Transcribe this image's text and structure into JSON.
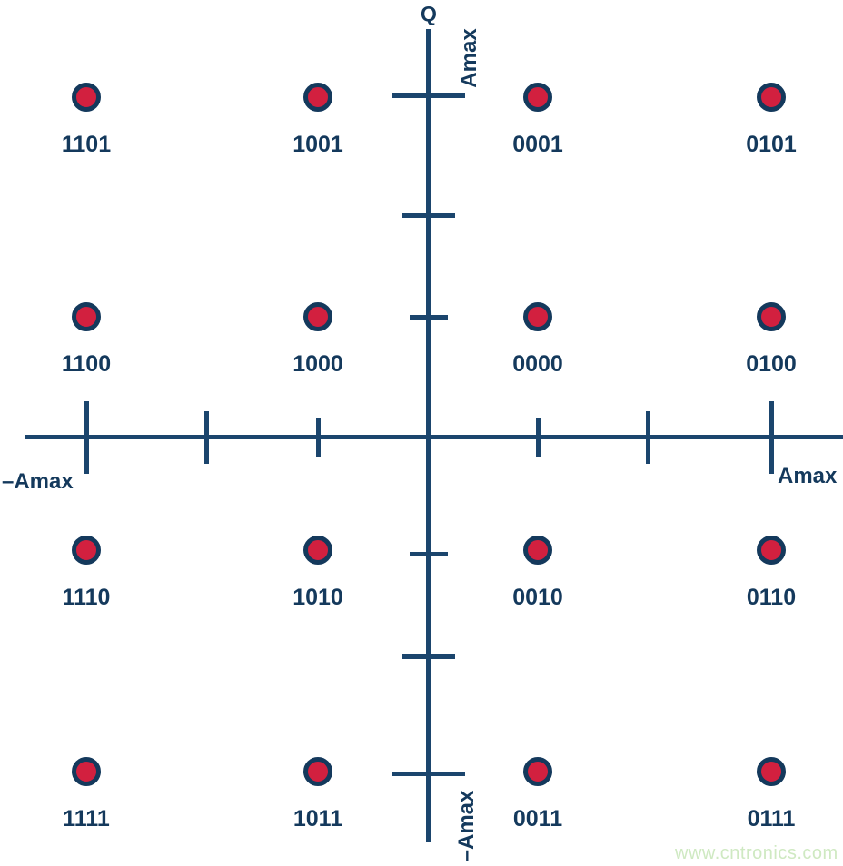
{
  "figure": {
    "q_axis_label": "Q",
    "q_axis_top_label": "Amax",
    "q_axis_bottom_label": "–Amax",
    "i_axis_left_label": "–Amax",
    "i_axis_right_label": "Amax"
  },
  "watermark": "www.cntronics.com",
  "colors": {
    "navy_text": "#14395c",
    "axis_line": "#1b456d",
    "point_red": "#d2203f",
    "watermark_green": "#cfe9c2"
  },
  "chart_data": {
    "type": "scatter",
    "title": "",
    "xlabel": "",
    "ylabel": "Q",
    "x_axis": {
      "label_left": "–Amax",
      "label_right": "Amax",
      "ticks_units": [
        -3,
        -2,
        -1,
        1,
        2,
        3
      ],
      "amax_at_units": 3
    },
    "y_axis": {
      "name": "Q",
      "label_top": "Amax",
      "label_bottom": "–Amax",
      "ticks_units": [
        3,
        2,
        1,
        -1,
        -2,
        -3
      ],
      "amax_at_units": 3
    },
    "grid": false,
    "legend": false,
    "points": [
      {
        "i": -3,
        "q": 3,
        "label": "1101"
      },
      {
        "i": -1,
        "q": 3,
        "label": "1001"
      },
      {
        "i": 1,
        "q": 3,
        "label": "0001"
      },
      {
        "i": 3,
        "q": 3,
        "label": "0101"
      },
      {
        "i": -3,
        "q": 1,
        "label": "1100"
      },
      {
        "i": -1,
        "q": 1,
        "label": "1000"
      },
      {
        "i": 1,
        "q": 1,
        "label": "0000"
      },
      {
        "i": 3,
        "q": 1,
        "label": "0100"
      },
      {
        "i": -3,
        "q": -1,
        "label": "1110"
      },
      {
        "i": -1,
        "q": -1,
        "label": "1010"
      },
      {
        "i": 1,
        "q": -1,
        "label": "0010"
      },
      {
        "i": 3,
        "q": -1,
        "label": "0110"
      },
      {
        "i": -3,
        "q": -3,
        "label": "1111"
      },
      {
        "i": -1,
        "q": -3,
        "label": "1011"
      },
      {
        "i": 1,
        "q": -3,
        "label": "0011"
      },
      {
        "i": 3,
        "q": -3,
        "label": "0111"
      }
    ]
  }
}
